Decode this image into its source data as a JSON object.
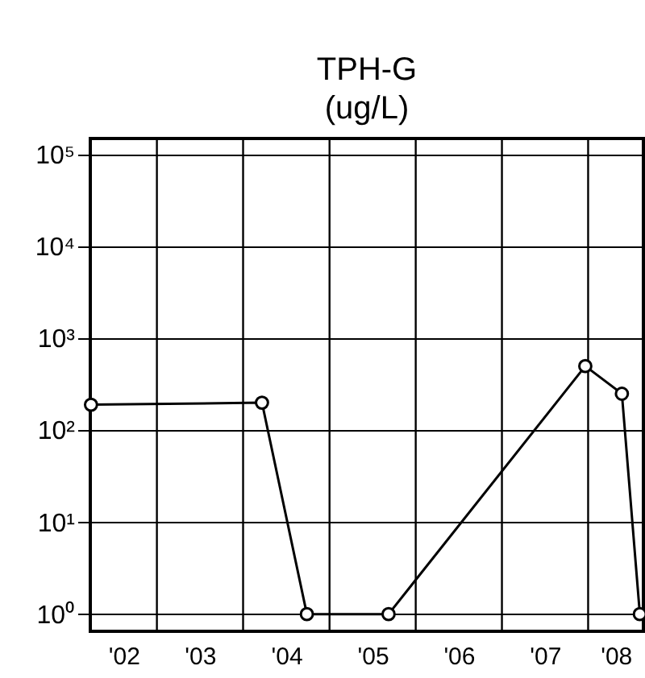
{
  "chart_data": {
    "type": "line",
    "title": "TPH-G\n(ug/L)",
    "x": [
      "2002-03-28",
      "2004-03-21",
      "2004-09-27",
      "2005-09-08",
      "2007-12-20",
      "2008-05-23",
      "2008-08-07"
    ],
    "series": [
      {
        "color": "#000000",
        "values": [
          190,
          200,
          1,
          1,
          500,
          250,
          1
        ]
      }
    ],
    "log": "y",
    "ylim": [
      0.65,
      150000
    ],
    "yticks": [
      {
        "value": 1,
        "label": "10⁰"
      },
      {
        "value": 10,
        "label": "10¹"
      },
      {
        "value": 100,
        "label": "10²"
      },
      {
        "value": 1000,
        "label": "10³"
      },
      {
        "value": 10000,
        "label": "10⁴"
      },
      {
        "value": 100000,
        "label": "10⁵"
      }
    ],
    "xlim": [
      "2002-03-25",
      "2008-08-22"
    ],
    "xticks": [
      {
        "value": "2002-08-13",
        "label": "'02"
      },
      {
        "value": "2003-07-02",
        "label": "'03"
      },
      {
        "value": "2004-07-02",
        "label": "'04"
      },
      {
        "value": "2005-07-02",
        "label": "'05"
      },
      {
        "value": "2006-07-02",
        "label": "'06"
      },
      {
        "value": "2007-07-02",
        "label": "'07"
      },
      {
        "value": "2008-04-27",
        "label": "'08"
      },
      {
        "value": "2003-01-01",
        "label": null
      },
      {
        "value": "2004-01-01",
        "label": null
      },
      {
        "value": "2005-01-01",
        "label": null
      },
      {
        "value": "2006-01-01",
        "label": null
      },
      {
        "value": "2007-01-01",
        "label": null
      },
      {
        "value": "2008-01-01",
        "label": null
      }
    ],
    "grid": true,
    "marker": "circle",
    "line_style": "solid",
    "legend": false
  }
}
